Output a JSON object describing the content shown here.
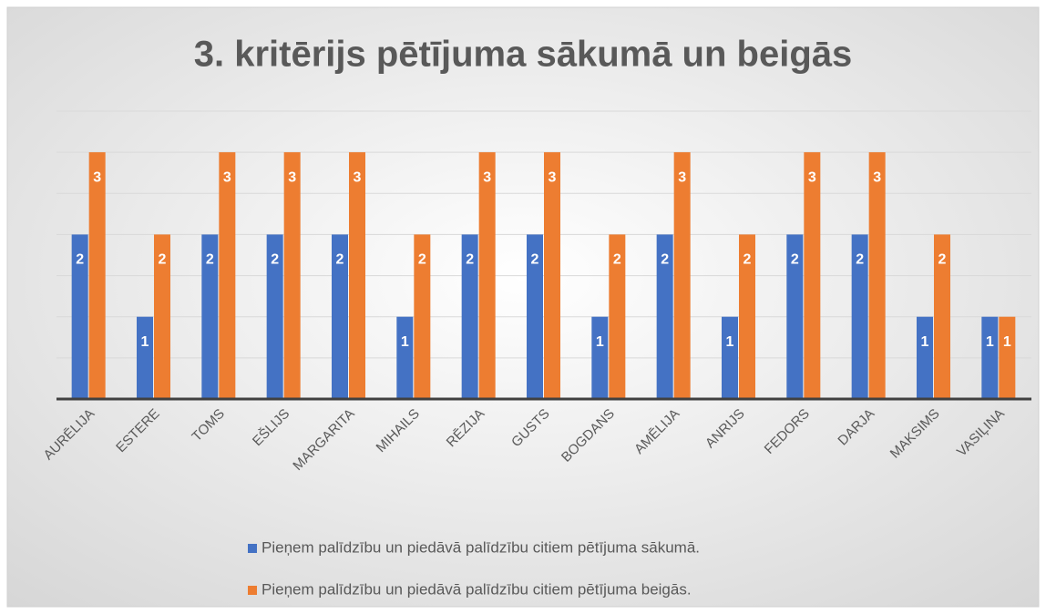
{
  "chart_data": {
    "type": "bar",
    "title": "3. kritērijs pētījuma sākumā un beigās",
    "categories": [
      "AURĒLIJA",
      "ESTERE",
      "TOMS",
      "EŠLIJS",
      "MARGARITA",
      "MIHAILS",
      "RĒZIJA",
      "GUSTS",
      "BOGDANS",
      "AMĒLIJA",
      "ANRIJS",
      "FEDORS",
      "DARJA",
      "MAKSIMS",
      "VASIĻINA"
    ],
    "series": [
      {
        "name": "Pieņem palīdzību un piedāvā palīdzību citiem pētījuma sākumā.",
        "color": "#4472c4",
        "values": [
          2,
          1,
          2,
          2,
          2,
          1,
          2,
          2,
          1,
          2,
          1,
          2,
          2,
          1,
          1
        ]
      },
      {
        "name": "Pieņem palīdzību un piedāvā palīdzību citiem pētījuma beigās.",
        "color": "#ed7d31",
        "values": [
          3,
          2,
          3,
          3,
          3,
          2,
          3,
          3,
          2,
          3,
          2,
          3,
          3,
          2,
          1
        ]
      }
    ],
    "ylim": [
      0,
      3.5
    ],
    "yticks": [
      0,
      0.5,
      1,
      1.5,
      2,
      2.5,
      3,
      3.5
    ],
    "grid": true
  }
}
